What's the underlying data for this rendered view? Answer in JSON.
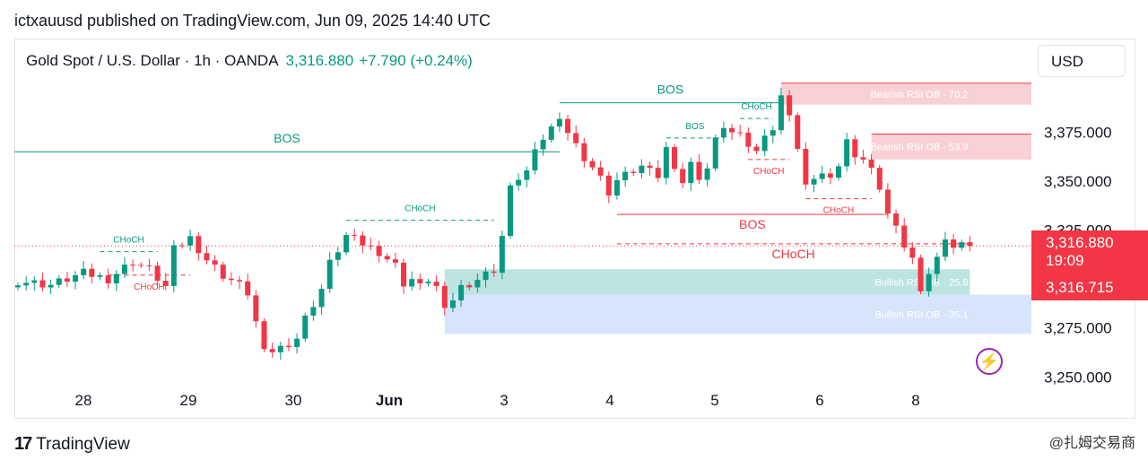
{
  "header": {
    "published": "ictxauusd published on TradingView.com, Jun 09, 2025 14:40 UTC"
  },
  "legend": {
    "symbol": "Gold Spot / U.S. Dollar · 1h · OANDA",
    "price": "3,316.880",
    "change": "+7.790 (+0.24%)"
  },
  "currency_button": "USD",
  "price_tags": {
    "last_price": "3,316.880",
    "countdown": "19:09",
    "second_price": "3,316.715"
  },
  "footer": {
    "brand": "TradingView",
    "watermark": "@扎姆交易商"
  },
  "colors": {
    "bull": "#089981",
    "bear": "#f23645",
    "bull_zone": "#b2dfdb",
    "bull_zone_2": "#cfe0fc",
    "bear_zone": "#f8c9cc"
  },
  "chart_data": {
    "type": "candlestick",
    "title": "Gold Spot / U.S. Dollar · 1h · OANDA",
    "x_tick_labels": [
      "28",
      "29",
      "30",
      "Jun",
      "3",
      "4",
      "5",
      "6",
      "8"
    ],
    "y_tick_labels": [
      "3,375.000",
      "3,350.000",
      "3,325.000",
      "3,275.000",
      "3,250.000"
    ],
    "y_ticks": [
      3375,
      3350,
      3325,
      3275,
      3250
    ],
    "ylim": [
      3241,
      3415
    ],
    "grid": false,
    "close_path": [
      [
        0,
        3299
      ],
      [
        4,
        3297
      ],
      [
        8,
        3303
      ],
      [
        11,
        3300
      ],
      [
        14,
        3309
      ],
      [
        16,
        3305
      ],
      [
        18,
        3296
      ],
      [
        19,
        3315
      ],
      [
        21,
        3321
      ],
      [
        23,
        3310
      ],
      [
        25,
        3302
      ],
      [
        27,
        3297
      ],
      [
        28,
        3293
      ],
      [
        29,
        3278
      ],
      [
        30,
        3262
      ],
      [
        32,
        3265
      ],
      [
        34,
        3270
      ],
      [
        35,
        3280
      ],
      [
        37,
        3295
      ],
      [
        38,
        3308
      ],
      [
        39,
        3315
      ],
      [
        40,
        3322
      ],
      [
        42,
        3318
      ],
      [
        44,
        3314
      ],
      [
        46,
        3307
      ],
      [
        47,
        3298
      ],
      [
        48,
        3300
      ],
      [
        49,
        3296
      ],
      [
        50,
        3300
      ],
      [
        51,
        3296
      ],
      [
        52,
        3283
      ],
      [
        53,
        3290
      ],
      [
        54,
        3296
      ],
      [
        55,
        3298
      ],
      [
        56,
        3300
      ],
      [
        58,
        3305
      ],
      [
        59,
        3322
      ],
      [
        60,
        3346
      ],
      [
        61,
        3352
      ],
      [
        62,
        3355
      ],
      [
        63,
        3364
      ],
      [
        64,
        3372
      ],
      [
        65,
        3377
      ],
      [
        66,
        3384
      ],
      [
        67,
        3375
      ],
      [
        68,
        3368
      ],
      [
        69,
        3362
      ],
      [
        70,
        3357
      ],
      [
        71,
        3351
      ],
      [
        72,
        3344
      ],
      [
        73,
        3350
      ],
      [
        75,
        3355
      ],
      [
        77,
        3359
      ],
      [
        78,
        3352
      ],
      [
        79,
        3366
      ],
      [
        80,
        3358
      ],
      [
        81,
        3349
      ],
      [
        82,
        3358
      ],
      [
        83,
        3352
      ],
      [
        84,
        3356
      ],
      [
        85,
        3370
      ],
      [
        86,
        3378
      ],
      [
        87,
        3374
      ],
      [
        88,
        3377
      ],
      [
        89,
        3368
      ],
      [
        90,
        3364
      ],
      [
        91,
        3375
      ],
      [
        92,
        3376
      ],
      [
        93,
        3392
      ],
      [
        94,
        3385
      ],
      [
        95,
        3366
      ],
      [
        96,
        3346
      ],
      [
        97,
        3352
      ],
      [
        99,
        3354
      ],
      [
        100,
        3358
      ],
      [
        101,
        3370
      ],
      [
        102,
        3364
      ],
      [
        103,
        3361
      ],
      [
        104,
        3355
      ],
      [
        105,
        3347
      ],
      [
        106,
        3333
      ],
      [
        107,
        3325
      ],
      [
        108,
        3317
      ],
      [
        109,
        3310
      ],
      [
        110,
        3296
      ],
      [
        111,
        3303
      ],
      [
        112,
        3310
      ],
      [
        113,
        3322
      ],
      [
        114,
        3316
      ],
      [
        115,
        3317
      ],
      [
        116,
        3316.88
      ]
    ],
    "annotations": [
      {
        "label": "BOS",
        "kind": "bull",
        "x_start": 0,
        "x_end": 66,
        "y": 3365
      },
      {
        "label": "BOS",
        "kind": "bull",
        "x_start": 66,
        "x_end": 93,
        "y": 3390
      },
      {
        "label": "CHoCH",
        "kind": "bull",
        "x_start": 40,
        "x_end": 58,
        "y": 3330
      },
      {
        "label": "CHoCH",
        "kind": "bull",
        "x_start": 10,
        "x_end": 17,
        "y": 3314
      },
      {
        "label": "CHoCH",
        "kind": "bear",
        "x_start": 11,
        "x_end": 21,
        "y": 3302
      },
      {
        "label": "BOS",
        "kind": "bull",
        "x_start": 79,
        "x_end": 86,
        "y": 3372
      },
      {
        "label": "CHoCH",
        "kind": "bull",
        "x_start": 88,
        "x_end": 92,
        "y": 3382
      },
      {
        "label": "CHoCH",
        "kind": "bear",
        "x_start": 89,
        "x_end": 94,
        "y": 3361
      },
      {
        "label": "CHoCH",
        "kind": "bear",
        "x_start": 96,
        "x_end": 104,
        "y": 3341
      },
      {
        "label": "BOS",
        "kind": "bear",
        "x_start": 73,
        "x_end": 106,
        "y": 3333
      },
      {
        "label": "CHoCH",
        "kind": "bear",
        "x_start": 73,
        "x_end": 116,
        "y": 3318
      }
    ],
    "zones": [
      {
        "label": "Bearish RSI OB · 70.2",
        "kind": "bear",
        "x_start": 93,
        "y_top": 3400,
        "y_bottom": 3389
      },
      {
        "label": "Bearish RSI OB · 53.9",
        "kind": "bear",
        "x_start": 104,
        "y_top": 3374,
        "y_bottom": 3361
      },
      {
        "label": "Bullish RSI OB · 25.8",
        "kind": "bull",
        "x_start": 52,
        "y_top": 3305,
        "y_bottom": 3292
      },
      {
        "label": "Bullish RSI OB · 35.1",
        "kind": "bull2",
        "x_start": 52,
        "y_top": 3292,
        "y_bottom": 3272
      }
    ],
    "last_price": 3316.88
  }
}
